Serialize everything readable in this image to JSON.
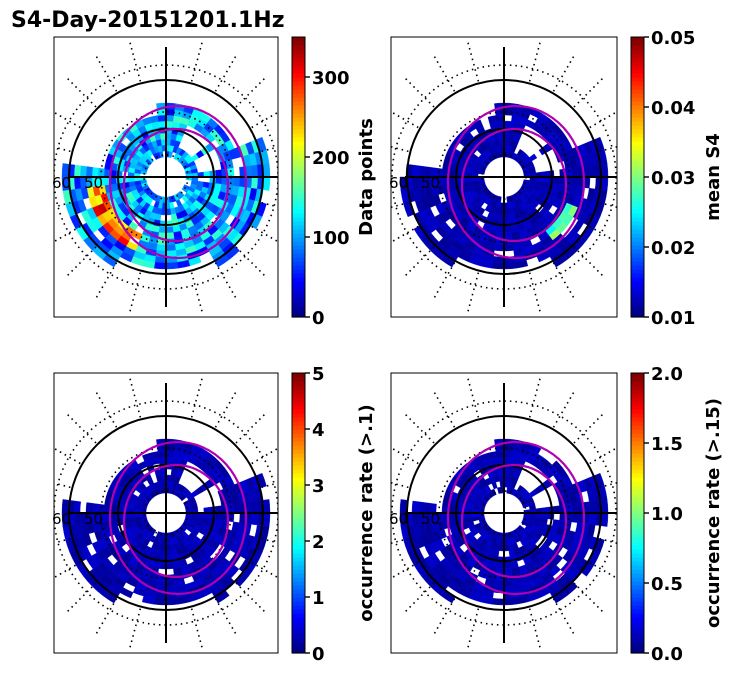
{
  "title": "S4-Day-20151201.1Hz",
  "colors": {
    "axis": "#000000",
    "contour": "#b000b0",
    "background": "#ffffff"
  },
  "chart_data": [
    {
      "type": "heatmap",
      "projection": "polar",
      "title": "S4-Day-20151201.1Hz",
      "polar_ring_labels": [
        "60",
        "50"
      ],
      "colorbar": {
        "label": "Data points",
        "min": 0,
        "max": 350,
        "ticks": [
          "0",
          "100",
          "200",
          "300"
        ],
        "tick_values": [
          0,
          100,
          200,
          300
        ]
      },
      "field": "data_points"
    },
    {
      "type": "heatmap",
      "projection": "polar",
      "title": "",
      "polar_ring_labels": [
        "60",
        "50"
      ],
      "colorbar": {
        "label": "mean S4",
        "min": 0.01,
        "max": 0.05,
        "ticks": [
          "0.01",
          "0.02",
          "0.03",
          "0.04",
          "0.05"
        ],
        "tick_values": [
          0.01,
          0.02,
          0.03,
          0.04,
          0.05
        ]
      },
      "field": "mean_s4"
    },
    {
      "type": "heatmap",
      "projection": "polar",
      "title": "",
      "polar_ring_labels": [
        "60",
        "50"
      ],
      "colorbar": {
        "label": "occurrence rate (>.1)",
        "min": 0,
        "max": 5,
        "ticks": [
          "0",
          "1",
          "2",
          "3",
          "4",
          "5"
        ],
        "tick_values": [
          0,
          1,
          2,
          3,
          4,
          5
        ]
      },
      "field": "occ_01"
    },
    {
      "type": "heatmap",
      "projection": "polar",
      "title": "",
      "polar_ring_labels": [
        "60",
        "50"
      ],
      "colorbar": {
        "label": "occurrence rate (>.15)",
        "min": 0.0,
        "max": 2.0,
        "ticks": [
          "0.0",
          "0.5",
          "1.0",
          "1.5",
          "2.0"
        ],
        "tick_values": [
          0.0,
          0.5,
          1.0,
          1.5,
          2.0
        ]
      },
      "field": "occ_015"
    }
  ]
}
